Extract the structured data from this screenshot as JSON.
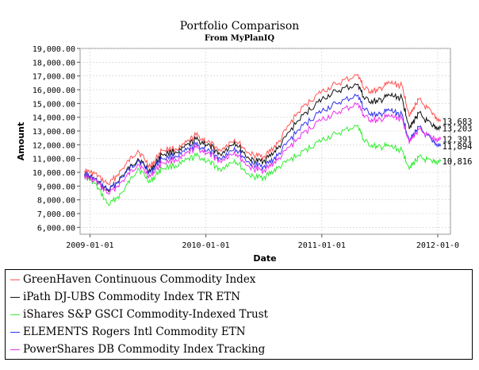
{
  "chart_data": {
    "type": "line",
    "title": "Portfolio Comparison",
    "subtitle": "From MyPlanIQ",
    "xlabel": "Date",
    "ylabel": "Amount",
    "ylim": [
      5500,
      19000
    ],
    "yticks": [
      "6,000.00",
      "7,000.00",
      "8,000.00",
      "9,000.00",
      "10,000.00",
      "11,000.00",
      "12,000.00",
      "13,000.00",
      "14,000.00",
      "15,000.00",
      "16,000.00",
      "17,000.00",
      "18,000.00",
      "19,000.00"
    ],
    "xticks": [
      "2009-01-01",
      "2010-01-01",
      "2011-01-01",
      "2012-01-0"
    ],
    "xrange": [
      "2008-12-01",
      "2012-02-10"
    ],
    "grid": true,
    "legend_position": "bottom",
    "series": [
      {
        "name": "GreenHaven Continuous Commodity Index",
        "color": "#ff5555",
        "end_label": "13,683",
        "points": [
          [
            "2008-12-15",
            10100
          ],
          [
            "2009-01-15",
            9900
          ],
          [
            "2009-03-01",
            9100
          ],
          [
            "2009-04-15",
            10300
          ],
          [
            "2009-06-01",
            11600
          ],
          [
            "2009-07-10",
            10400
          ],
          [
            "2009-08-15",
            11600
          ],
          [
            "2009-10-15",
            11800
          ],
          [
            "2009-12-01",
            12700
          ],
          [
            "2010-01-15",
            12100
          ],
          [
            "2010-02-15",
            11600
          ],
          [
            "2010-04-01",
            12400
          ],
          [
            "2010-05-20",
            11300
          ],
          [
            "2010-07-01",
            11100
          ],
          [
            "2010-08-15",
            12100
          ],
          [
            "2010-10-15",
            14300
          ],
          [
            "2010-12-20",
            15700
          ],
          [
            "2011-02-15",
            16400
          ],
          [
            "2011-04-25",
            17100
          ],
          [
            "2011-05-15",
            16000
          ],
          [
            "2011-06-25",
            15900
          ],
          [
            "2011-08-01",
            16500
          ],
          [
            "2011-09-10",
            16300
          ],
          [
            "2011-10-05",
            14100
          ],
          [
            "2011-11-01",
            15300
          ],
          [
            "2011-12-15",
            14200
          ],
          [
            "2012-01-10",
            13683
          ]
        ]
      },
      {
        "name": "iPath DJ-UBS Commodity Index TR ETN",
        "color": "#111111",
        "end_label": "13,203",
        "points": [
          [
            "2008-12-15",
            9800
          ],
          [
            "2009-01-15",
            9500
          ],
          [
            "2009-03-01",
            8600
          ],
          [
            "2009-04-15",
            9800
          ],
          [
            "2009-06-01",
            11000
          ],
          [
            "2009-07-10",
            10100
          ],
          [
            "2009-08-15",
            11300
          ],
          [
            "2009-10-15",
            11600
          ],
          [
            "2009-12-01",
            12400
          ],
          [
            "2010-01-15",
            11900
          ],
          [
            "2010-02-15",
            11300
          ],
          [
            "2010-04-01",
            12200
          ],
          [
            "2010-05-20",
            10900
          ],
          [
            "2010-07-01",
            10800
          ],
          [
            "2010-08-15",
            11700
          ],
          [
            "2010-10-15",
            13700
          ],
          [
            "2010-12-20",
            15100
          ],
          [
            "2011-02-15",
            15900
          ],
          [
            "2011-04-25",
            16400
          ],
          [
            "2011-05-15",
            15300
          ],
          [
            "2011-06-25",
            15100
          ],
          [
            "2011-08-01",
            15600
          ],
          [
            "2011-09-10",
            15400
          ],
          [
            "2011-10-05",
            13200
          ],
          [
            "2011-11-01",
            14300
          ],
          [
            "2011-12-15",
            13300
          ],
          [
            "2012-01-10",
            13203
          ]
        ]
      },
      {
        "name": "iShares S&P GSCI Commodity-Indexed Trust",
        "color": "#33ee33",
        "end_label": "10,816",
        "points": [
          [
            "2008-12-15",
            9700
          ],
          [
            "2009-01-15",
            9200
          ],
          [
            "2009-03-01",
            7600
          ],
          [
            "2009-04-15",
            8600
          ],
          [
            "2009-06-01",
            10300
          ],
          [
            "2009-07-10",
            9300
          ],
          [
            "2009-08-15",
            10300
          ],
          [
            "2009-10-15",
            10600
          ],
          [
            "2009-12-01",
            11200
          ],
          [
            "2010-01-15",
            10700
          ],
          [
            "2010-02-15",
            10200
          ],
          [
            "2010-04-01",
            10900
          ],
          [
            "2010-05-20",
            9700
          ],
          [
            "2010-07-01",
            9600
          ],
          [
            "2010-08-15",
            10300
          ],
          [
            "2010-10-15",
            11200
          ],
          [
            "2010-12-20",
            12200
          ],
          [
            "2011-02-15",
            12800
          ],
          [
            "2011-04-25",
            13400
          ],
          [
            "2011-05-15",
            12200
          ],
          [
            "2011-06-25",
            11800
          ],
          [
            "2011-08-01",
            11900
          ],
          [
            "2011-09-10",
            11600
          ],
          [
            "2011-10-05",
            10300
          ],
          [
            "2011-11-01",
            11100
          ],
          [
            "2011-12-15",
            10700
          ],
          [
            "2012-01-10",
            10816
          ]
        ]
      },
      {
        "name": "ELEMENTS Rogers Intl Commodity ETN",
        "color": "#3333ee",
        "end_label": "11,894",
        "points": [
          [
            "2008-12-15",
            9900
          ],
          [
            "2009-01-15",
            9500
          ],
          [
            "2009-03-01",
            8700
          ],
          [
            "2009-04-15",
            9700
          ],
          [
            "2009-06-01",
            10900
          ],
          [
            "2009-07-10",
            10000
          ],
          [
            "2009-08-15",
            11000
          ],
          [
            "2009-10-15",
            11300
          ],
          [
            "2009-12-01",
            12000
          ],
          [
            "2010-01-15",
            11500
          ],
          [
            "2010-02-15",
            11000
          ],
          [
            "2010-04-01",
            11800
          ],
          [
            "2010-05-20",
            10600
          ],
          [
            "2010-07-01",
            10400
          ],
          [
            "2010-08-15",
            11200
          ],
          [
            "2010-10-15",
            13000
          ],
          [
            "2010-12-20",
            14300
          ],
          [
            "2011-02-15",
            15000
          ],
          [
            "2011-04-25",
            15600
          ],
          [
            "2011-05-15",
            14500
          ],
          [
            "2011-06-25",
            14100
          ],
          [
            "2011-08-01",
            14500
          ],
          [
            "2011-09-10",
            14200
          ],
          [
            "2011-10-05",
            12300
          ],
          [
            "2011-11-01",
            13300
          ],
          [
            "2011-12-15",
            12200
          ],
          [
            "2012-01-10",
            11894
          ]
        ]
      },
      {
        "name": "PowerShares DB Commodity Index Tracking",
        "color": "#ee33ee",
        "end_label": "12,391",
        "points": [
          [
            "2008-12-15",
            9700
          ],
          [
            "2009-01-15",
            9400
          ],
          [
            "2009-03-01",
            8400
          ],
          [
            "2009-04-15",
            9400
          ],
          [
            "2009-06-01",
            10600
          ],
          [
            "2009-07-10",
            9700
          ],
          [
            "2009-08-15",
            10700
          ],
          [
            "2009-10-15",
            11000
          ],
          [
            "2009-12-01",
            11800
          ],
          [
            "2010-01-15",
            11300
          ],
          [
            "2010-02-15",
            10800
          ],
          [
            "2010-04-01",
            11500
          ],
          [
            "2010-05-20",
            10300
          ],
          [
            "2010-07-01",
            10100
          ],
          [
            "2010-08-15",
            10900
          ],
          [
            "2010-10-15",
            12400
          ],
          [
            "2010-12-20",
            13700
          ],
          [
            "2011-02-15",
            14300
          ],
          [
            "2011-04-25",
            15000
          ],
          [
            "2011-05-15",
            14000
          ],
          [
            "2011-06-25",
            13700
          ],
          [
            "2011-08-01",
            14100
          ],
          [
            "2011-09-10",
            13900
          ],
          [
            "2011-10-05",
            12200
          ],
          [
            "2011-11-01",
            13100
          ],
          [
            "2011-12-15",
            12400
          ],
          [
            "2012-01-10",
            12391
          ]
        ]
      }
    ]
  }
}
